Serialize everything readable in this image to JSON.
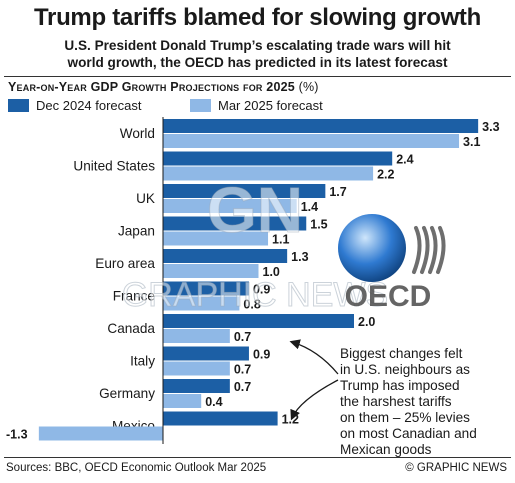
{
  "header": {
    "title": "Trump tariffs blamed for slowing growth",
    "subtitle_line1": "U.S. President Donald Trump’s escalating trade wars will hit",
    "subtitle_line2": "world growth, the OECD has predicted in its latest forecast"
  },
  "colors": {
    "dec_2024": "#1c5fa5",
    "mar_2025": "#8fb8e6",
    "accent": "#1c5fa5"
  },
  "chart_data": {
    "type": "bar",
    "orientation": "horizontal",
    "title": "Year-on-Year GDP Growth Projections for 2025",
    "unit": "(%)",
    "categories": [
      "World",
      "United States",
      "UK",
      "Japan",
      "Euro area",
      "France",
      "Canada",
      "Italy",
      "Germany",
      "Mexico"
    ],
    "series": [
      {
        "name": "Dec 2024 forecast",
        "values": [
          3.3,
          2.4,
          1.7,
          1.5,
          1.3,
          0.9,
          2.0,
          0.9,
          0.7,
          1.2
        ]
      },
      {
        "name": "Mar 2025 forecast",
        "values": [
          3.1,
          2.2,
          1.4,
          1.1,
          1.0,
          0.8,
          0.7,
          0.7,
          0.4,
          -1.3
        ]
      }
    ],
    "value_labels": [
      [
        "3.3",
        "2.4",
        "1.7",
        "1.5",
        "1.3",
        "0.9",
        "2.0",
        "0.9",
        "0.7",
        "1.2"
      ],
      [
        "3.1",
        "2.2",
        "1.4",
        "1.1",
        "1.0",
        "0.8",
        "0.7",
        "0.7",
        "0.4",
        "-1.3"
      ]
    ],
    "legend_position": "top-left",
    "grid": false,
    "annotation_lines": [
      "Biggest changes felt",
      "in U.S. neighbours as",
      "Trump has imposed",
      "the harshest tariffs",
      "on them – 25% levies",
      "on most Canadian and",
      "Mexican goods"
    ]
  },
  "footer": {
    "source": "Sources: BBC, OECD Economic Outlook Mar 2025",
    "credit": "© GRAPHIC NEWS"
  },
  "watermarks": {
    "gn_text": "GN",
    "graphic_news_text": "GRAPHIC NEWS",
    "oecd_text": "OECD"
  }
}
